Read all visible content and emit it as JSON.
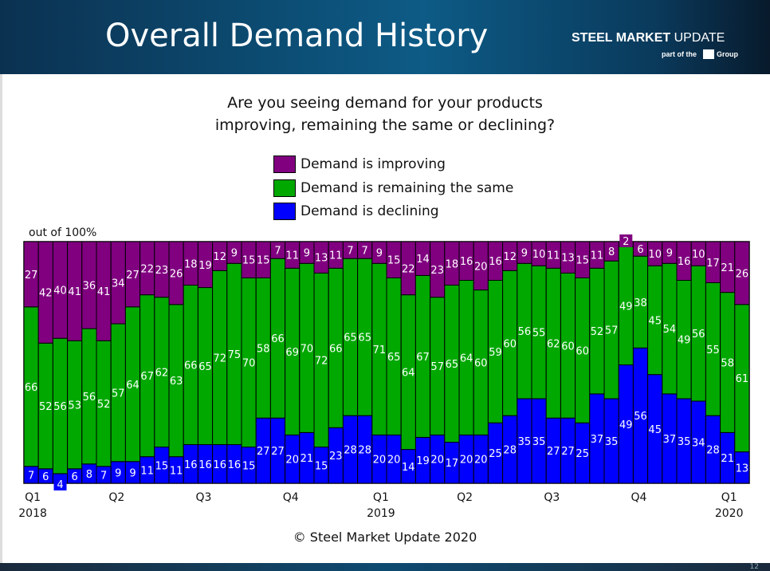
{
  "header": {
    "title": "Overall Demand History",
    "logo_text": "STEEL MARKET UPDATE",
    "logo_sub": "part of the CRU Group"
  },
  "footer": {
    "copyright": "© Steel Market Update 2020",
    "page_number": "12"
  },
  "colors": {
    "improving": "#800080",
    "same": "#00a800",
    "declining": "#0000ff"
  },
  "chart_data": {
    "type": "bar",
    "stacked": true,
    "title": "Are you seeing demand for your products improving, remaining the same or declining?",
    "title_lines": [
      "Are you seeing demand for your products",
      "improving, remaining the same or declining?"
    ],
    "ylabel": "out of 100%",
    "ylim": [
      0,
      100
    ],
    "legend": [
      "Demand is improving",
      "Demand is remaining the same",
      "Demand is declining"
    ],
    "legend_placement": "top-center",
    "x_ticks": [
      {
        "index": 0,
        "label": "Q1",
        "year": "2018"
      },
      {
        "index": 6,
        "label": "Q2",
        "year": ""
      },
      {
        "index": 12,
        "label": "Q3",
        "year": ""
      },
      {
        "index": 18,
        "label": "Q4",
        "year": ""
      },
      {
        "index": 24,
        "label": "Q1",
        "year": "2019"
      },
      {
        "index": 30,
        "label": "Q2",
        "year": ""
      },
      {
        "index": 36,
        "label": "Q3",
        "year": ""
      },
      {
        "index": 42,
        "label": "Q4",
        "year": ""
      },
      {
        "index": 48,
        "label": "Q1",
        "year": "2020"
      }
    ],
    "series": [
      {
        "name": "Demand is declining",
        "values": [
          7,
          6,
          4,
          6,
          8,
          7,
          9,
          9,
          11,
          15,
          11,
          16,
          16,
          16,
          16,
          15,
          27,
          27,
          20,
          21,
          15,
          23,
          28,
          28,
          20,
          20,
          14,
          19,
          20,
          17,
          20,
          20,
          25,
          28,
          35,
          35,
          27,
          27,
          25,
          37,
          35,
          49,
          56,
          45,
          37,
          35,
          34,
          28,
          21,
          13
        ]
      },
      {
        "name": "Demand is remaining the same",
        "values": [
          66,
          52,
          56,
          53,
          56,
          52,
          57,
          64,
          67,
          62,
          63,
          66,
          65,
          72,
          75,
          70,
          58,
          66,
          69,
          70,
          72,
          66,
          65,
          65,
          71,
          65,
          64,
          67,
          57,
          65,
          64,
          60,
          59,
          60,
          56,
          55,
          62,
          60,
          60,
          52,
          57,
          49,
          38,
          45,
          54,
          49,
          56,
          55,
          58,
          61
        ]
      },
      {
        "name": "Demand is improving",
        "values": [
          27,
          42,
          40,
          41,
          36,
          41,
          34,
          27,
          22,
          23,
          26,
          18,
          19,
          12,
          9,
          15,
          15,
          7,
          11,
          9,
          13,
          11,
          7,
          7,
          9,
          15,
          22,
          14,
          23,
          18,
          16,
          20,
          16,
          12,
          9,
          10,
          11,
          13,
          15,
          11,
          8,
          2,
          6,
          10,
          9,
          16,
          10,
          17,
          21,
          26
        ]
      }
    ]
  }
}
